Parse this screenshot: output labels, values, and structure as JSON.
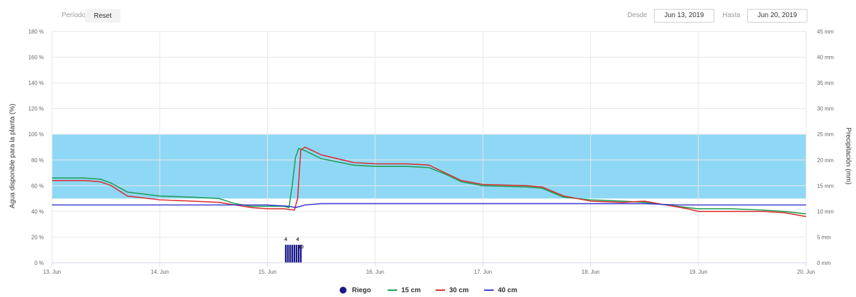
{
  "toolbar": {
    "period_label": "Período",
    "reset_label": "Reset",
    "from_label": "Desde",
    "from_value": "Jun 13, 2019",
    "to_label": "Hasta",
    "to_value": "Jun 20, 2019"
  },
  "chart_data": {
    "type": "line",
    "title": "",
    "ylabel": "Agua disponible para la planta (%)",
    "y2label": "Precipitación (mm)",
    "x_ticks": [
      "13. Jun",
      "14. Jun",
      "15. Jun",
      "16. Jun",
      "17. Jun",
      "18. Jun",
      "19. Jun",
      "20. Jun"
    ],
    "ylim": [
      0,
      180
    ],
    "y_ticks": [
      "0 %",
      "20 %",
      "40 %",
      "60 %",
      "80 %",
      "100 %",
      "120 %",
      "140 %",
      "160 %",
      "180 %"
    ],
    "y2lim": [
      0,
      45
    ],
    "y2_ticks": [
      "0 mm",
      "5 mm",
      "10 mm",
      "15 mm",
      "20 mm",
      "25 mm",
      "30 mm",
      "35 mm",
      "40 mm",
      "45 mm"
    ],
    "band": {
      "from": 50,
      "to": 100,
      "color": "#8fd8f5"
    },
    "grid": true,
    "legend_position": "bottom",
    "colors": {
      "riego": "#1a1a8c",
      "s15": "#1f9e55",
      "s30": "#d93030",
      "s40": "#3b3bd1"
    },
    "series": [
      {
        "name": "15 cm",
        "x": [
          13.0,
          13.3,
          13.45,
          13.55,
          13.7,
          14.0,
          14.3,
          14.55,
          14.7,
          14.85,
          15.0,
          15.15,
          15.2,
          15.23,
          15.26,
          15.29,
          15.33,
          15.5,
          15.8,
          16.0,
          16.3,
          16.5,
          16.65,
          16.8,
          17.0,
          17.4,
          17.55,
          17.75,
          18.0,
          18.3,
          18.5,
          18.7,
          18.9,
          19.0,
          19.3,
          19.6,
          19.8,
          20.0
        ],
        "values": [
          66,
          66,
          65,
          62,
          55,
          52,
          51,
          50,
          46,
          44,
          44,
          44,
          43,
          60,
          82,
          89,
          88,
          81,
          76,
          75,
          75,
          74,
          69,
          63,
          60,
          59,
          58,
          51,
          49,
          48,
          47,
          45,
          43,
          42,
          42,
          41,
          40,
          38
        ]
      },
      {
        "name": "30 cm",
        "x": [
          13.0,
          13.3,
          13.45,
          13.55,
          13.7,
          14.0,
          14.3,
          14.55,
          14.7,
          14.85,
          15.0,
          15.15,
          15.25,
          15.28,
          15.31,
          15.35,
          15.5,
          15.8,
          16.0,
          16.3,
          16.5,
          16.65,
          16.8,
          17.0,
          17.4,
          17.55,
          17.75,
          18.0,
          18.3,
          18.5,
          18.7,
          18.9,
          19.0,
          19.3,
          19.6,
          19.8,
          20.0
        ],
        "values": [
          64,
          64,
          63,
          60,
          52,
          49,
          48,
          47,
          45,
          43,
          42,
          42,
          41,
          50,
          88,
          90,
          84,
          78,
          77,
          77,
          76,
          70,
          64,
          61,
          60,
          59,
          52,
          48,
          47,
          48,
          45,
          42,
          40,
          40,
          40,
          39,
          36
        ]
      },
      {
        "name": "40 cm",
        "x": [
          13.0,
          14.0,
          15.0,
          15.2,
          15.26,
          15.35,
          15.5,
          16.0,
          16.5,
          17.0,
          17.5,
          18.0,
          18.5,
          18.8,
          19.0,
          19.5,
          20.0
        ],
        "values": [
          45,
          45,
          45,
          44,
          43,
          45,
          46,
          46,
          46,
          46,
          46,
          46,
          46,
          45,
          45,
          45,
          45
        ]
      }
    ],
    "riego": {
      "name": "Riego",
      "bars_x": [
        15.17,
        15.19,
        15.21,
        15.23,
        15.25,
        15.27,
        15.29,
        15.31
      ],
      "bars_mm": [
        3.5,
        3.5,
        3.5,
        3.5,
        3.5,
        3.5,
        3.5,
        3.5
      ],
      "labels": [
        {
          "x": 15.17,
          "mm": 4,
          "text": "4"
        },
        {
          "x": 15.28,
          "mm": 4,
          "text": "4"
        },
        {
          "x": 15.31,
          "mm": 2.5,
          "text": "10"
        }
      ]
    },
    "legend": [
      "Riego",
      "15 cm",
      "30 cm",
      "40 cm"
    ]
  }
}
